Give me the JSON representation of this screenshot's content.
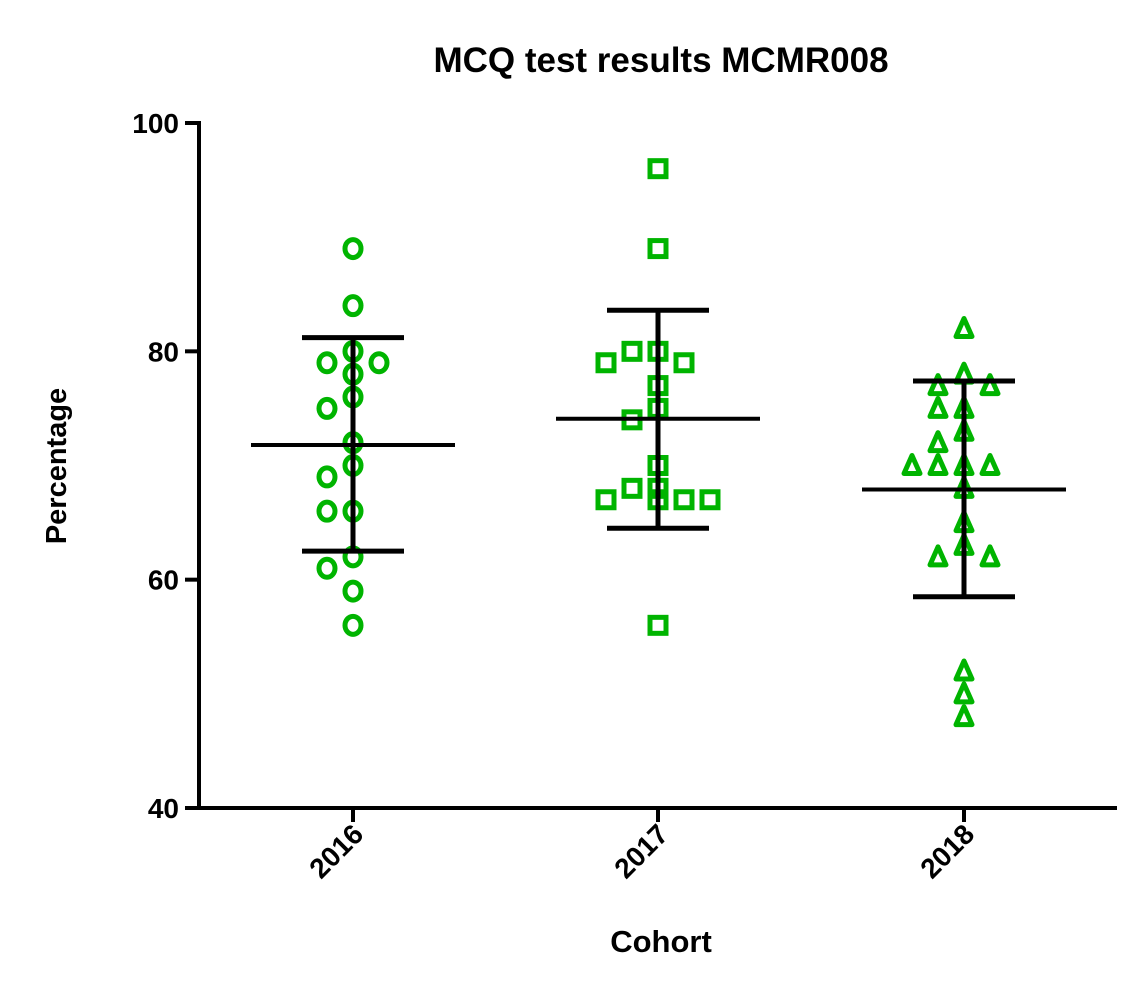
{
  "chart_data": {
    "type": "scatter",
    "title": "MCQ test results MCMR008",
    "xlabel": "Cohort",
    "ylabel": "Percentage",
    "ylim": [
      40,
      100
    ],
    "yticks": [
      "40",
      "60",
      "80",
      "100"
    ],
    "categories": [
      "2016",
      "2017",
      "2018"
    ],
    "grid": false,
    "marker_color": "#00b400",
    "error_bar_color": "#000000",
    "series": [
      {
        "category": "2016",
        "marker": "circle",
        "values": [
          89,
          84,
          80,
          79,
          79,
          78,
          76,
          75,
          72,
          70,
          69,
          66,
          66,
          62,
          61,
          59,
          56
        ],
        "mean": 71.8,
        "sd_upper": 81.2,
        "sd_lower": 62.5
      },
      {
        "category": "2017",
        "marker": "square",
        "values": [
          96,
          89,
          80,
          80,
          79,
          79,
          77,
          75,
          74,
          70,
          68,
          68,
          67,
          67,
          67,
          67,
          56
        ],
        "mean": 74.1,
        "sd_upper": 83.6,
        "sd_lower": 64.5
      },
      {
        "category": "2018",
        "marker": "triangle",
        "values": [
          82,
          78,
          77,
          77,
          75,
          75,
          73,
          72,
          70,
          70,
          70,
          70,
          68,
          65,
          63,
          62,
          62,
          52,
          50,
          48
        ],
        "mean": 67.9,
        "sd_upper": 77.4,
        "sd_lower": 58.5
      }
    ]
  }
}
